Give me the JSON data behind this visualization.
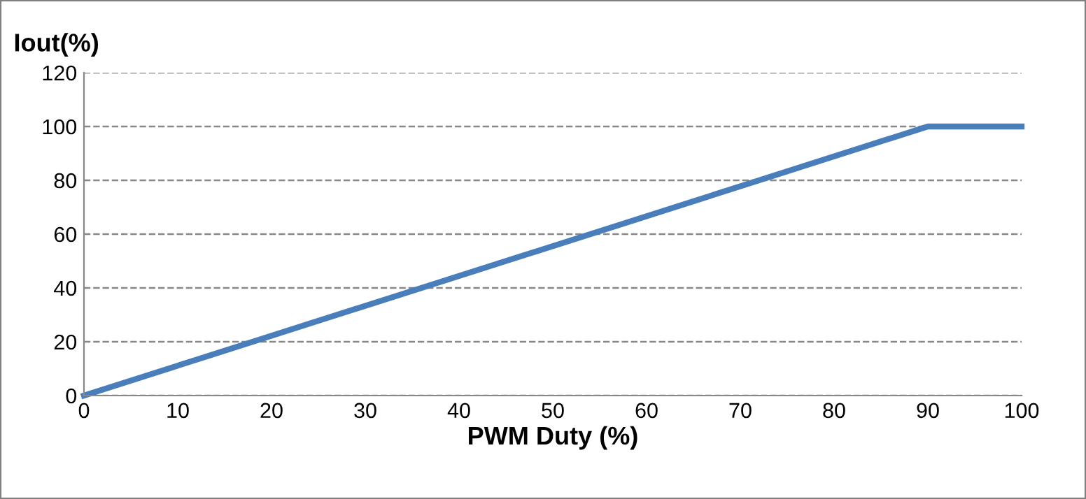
{
  "chart_data": {
    "type": "line",
    "xlabel": "PWM Duty (%)",
    "ylabel": "Iout(%)",
    "x": [
      0,
      90,
      100
    ],
    "series": [
      {
        "color": "#4a7ebb",
        "values": [
          0,
          100,
          100
        ]
      }
    ],
    "xlim": [
      0,
      100
    ],
    "xticks": [
      0,
      10,
      20,
      30,
      40,
      50,
      60,
      70,
      80,
      90,
      100
    ],
    "ylim": [
      0,
      120
    ],
    "yticks": [
      0,
      20,
      40,
      60,
      80,
      100,
      120
    ],
    "grid": "y",
    "line_style": "solid",
    "marker": "none"
  }
}
